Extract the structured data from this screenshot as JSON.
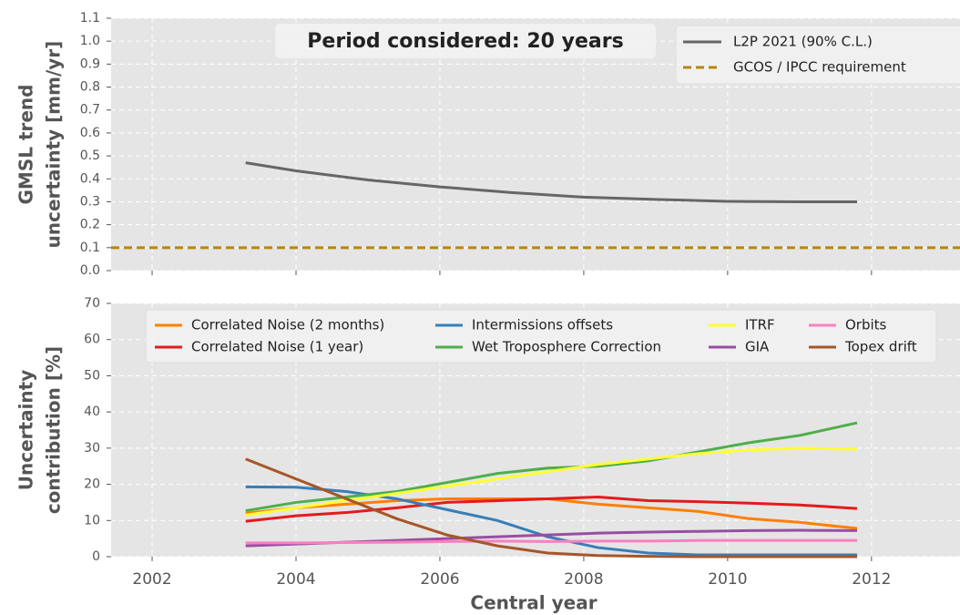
{
  "chart_data": [
    {
      "type": "line",
      "ylabel": [
        "GMSL trend",
        "uncertainty [mm/yr]"
      ],
      "annotation": "Period considered: 20 years",
      "xlim": [
        2001.43,
        2013.23
      ],
      "xticks": [
        2002,
        2004,
        2006,
        2008,
        2010,
        2012
      ],
      "xtick_labels": false,
      "ylim": [
        0,
        1.1
      ],
      "yticks": [
        {
          "value": 0,
          "label": "0.0"
        },
        0.1,
        0.2,
        0.3,
        0.4,
        0.5,
        0.6,
        0.7,
        0.8,
        0.9,
        {
          "value": 1,
          "label": "1.0"
        },
        1.1
      ],
      "grid": true,
      "legend": {
        "loc": "upper right",
        "ncol": 1
      },
      "series": [
        {
          "name": "L2P 2021 (90% C.L.)",
          "color": "#666666",
          "dashed": false,
          "x": [
            2003.3,
            2004,
            2005,
            2006,
            2007,
            2008,
            2009,
            2010,
            2011,
            2011.8
          ],
          "values": [
            0.47,
            0.435,
            0.395,
            0.365,
            0.34,
            0.32,
            0.31,
            0.302,
            0.3,
            0.3
          ]
        },
        {
          "name": "GCOS / IPCC requirement",
          "color": "#b8860b",
          "dashed": true,
          "x": [
            2001.43,
            2013.23
          ],
          "values": [
            0.1,
            0.1
          ]
        }
      ]
    },
    {
      "type": "line",
      "ylabel": [
        "Uncertainty",
        "contribution [%]"
      ],
      "xlabel": "Central year",
      "xlim": [
        2001.43,
        2013.23
      ],
      "xticks": [
        2002,
        2004,
        2006,
        2008,
        2010,
        2012
      ],
      "xtick_labels": true,
      "ylim": [
        0,
        70
      ],
      "yticks": [
        0,
        10,
        20,
        30,
        40,
        50,
        60,
        70
      ],
      "grid": true,
      "legend": {
        "loc": "upper center",
        "ncol": 4
      },
      "x": [
        2003.3,
        2004,
        2004.7,
        2005.4,
        2006.1,
        2006.8,
        2007.5,
        2008.2,
        2008.9,
        2009.6,
        2010.3,
        2011,
        2011.8
      ],
      "series": [
        {
          "name": "Correlated Noise (2 months)",
          "color": "#ff7f00",
          "values": [
            12,
            13.5,
            14.5,
            15.5,
            16,
            16,
            16,
            14.5,
            13.5,
            12.5,
            10.5,
            9.5,
            7.8
          ]
        },
        {
          "name": "Correlated Noise (1 year)",
          "color": "#e41a1c",
          "values": [
            9.8,
            11.3,
            12.2,
            13.5,
            15,
            15.5,
            16,
            16.5,
            15.5,
            15.2,
            14.8,
            14.3,
            13.3
          ]
        },
        {
          "name": "Intermissions offsets",
          "color": "#377eb8",
          "values": [
            19.3,
            19.2,
            18,
            16,
            13,
            10,
            5.5,
            2.5,
            1,
            0.5,
            0.5,
            0.5,
            0.5
          ]
        },
        {
          "name": "Wet Troposphere Correction",
          "color": "#4daf4a",
          "values": [
            12.7,
            15,
            16.5,
            18,
            20.5,
            23,
            24.5,
            25,
            26.5,
            29,
            31.5,
            33.5,
            37
          ]
        },
        {
          "name": "ITRF",
          "color": "#ffff33",
          "values": [
            11.5,
            13.5,
            15.5,
            17.5,
            19.5,
            21.5,
            23.5,
            25.5,
            27,
            28.5,
            29.5,
            30,
            29.7
          ]
        },
        {
          "name": "GIA",
          "color": "#984ea3",
          "values": [
            3,
            3.5,
            4,
            4.5,
            5,
            5.5,
            6,
            6.5,
            6.8,
            7,
            7.2,
            7.3,
            7.2
          ]
        },
        {
          "name": "Orbits",
          "color": "#f781bf",
          "values": [
            3.8,
            3.8,
            3.9,
            4,
            4.2,
            4.3,
            4.2,
            4.3,
            4.3,
            4.5,
            4.5,
            4.5,
            4.5
          ]
        },
        {
          "name": "Topex drift",
          "color": "#a65628",
          "values": [
            27,
            21.5,
            16,
            10.5,
            6,
            3,
            1,
            0.3,
            0.1,
            0,
            0,
            0,
            0
          ]
        }
      ]
    }
  ]
}
